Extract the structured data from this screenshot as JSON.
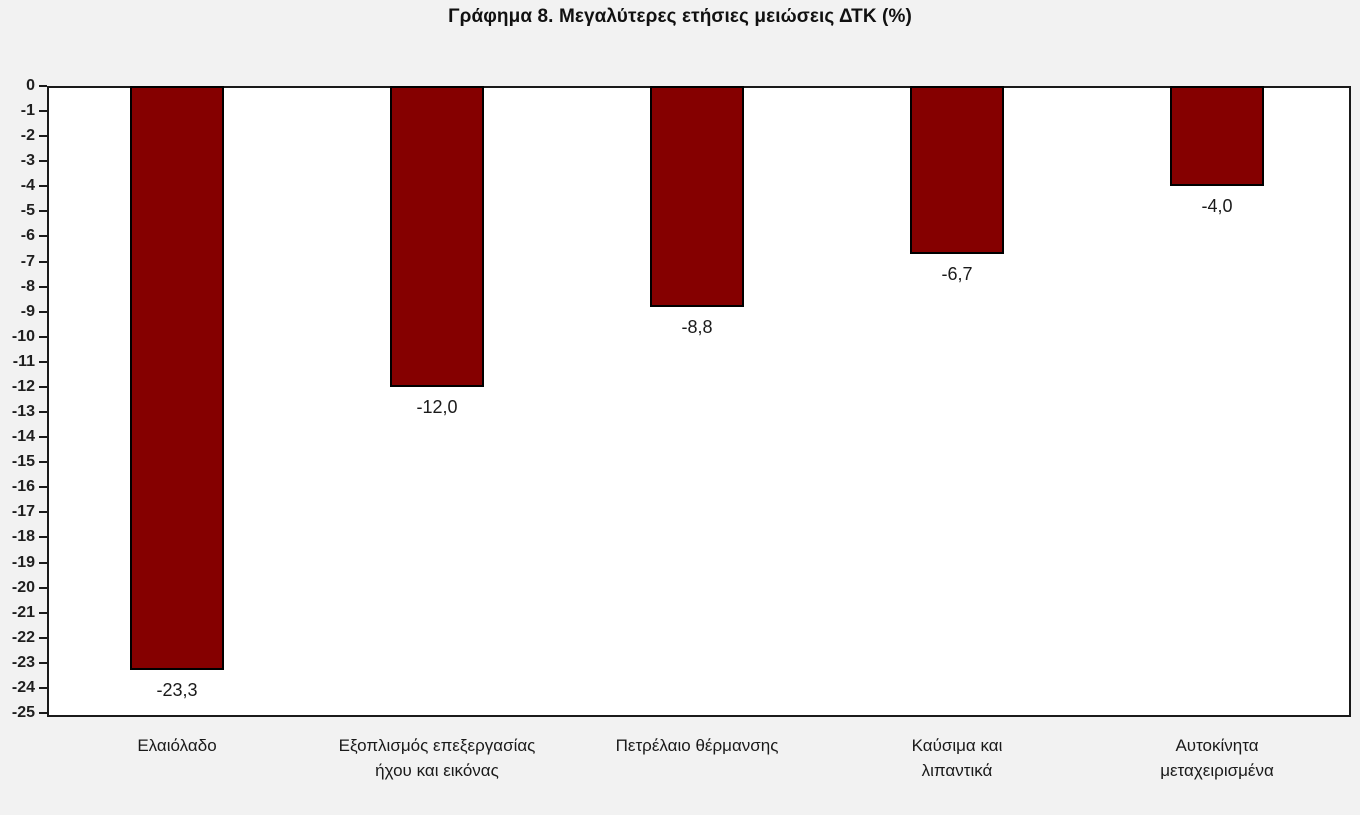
{
  "page": {
    "background_color": "#f2f2f2",
    "plot_background_color": "#ffffff",
    "axis_color": "#1a1a1a",
    "text_color": "#1a1a1a"
  },
  "title": "Γράφημα 8. Μεγαλύτερες ετήσιες μειώσεις ΔΤΚ (%)",
  "chart_data": {
    "type": "bar",
    "title": "Γράφημα 8. Μεγαλύτερες ετήσιες μειώσεις ΔΤΚ (%)",
    "orientation": "vertical",
    "categories": [
      "Ελαιόλαδο",
      "Εξοπλισμός επεξεργασίας ήχου και εικόνας",
      "Πετρέλαιο θέρμανσης",
      "Καύσιμα και λιπαντικά",
      "Αυτοκίνητα μεταχειρισμένα"
    ],
    "category_label_lines": [
      [
        "Ελαιόλαδο"
      ],
      [
        "Εξοπλισμός επεξεργασίας",
        "ήχου και εικόνας"
      ],
      [
        "Πετρέλαιο θέρμανσης"
      ],
      [
        "Καύσιμα και",
        "λιπαντικά"
      ],
      [
        "Αυτοκίνητα",
        "μεταχειρισμένα"
      ]
    ],
    "values": [
      -23.3,
      -12.0,
      -8.8,
      -6.7,
      -4.0
    ],
    "value_labels": [
      "-23,3",
      "-12,0",
      "-8,8",
      "-6,7",
      "-4,0"
    ],
    "xlabel": "",
    "ylabel": "",
    "ylim": [
      0,
      -25
    ],
    "y_tick_step": 1,
    "y_tick_labels": [
      "0",
      "-1",
      "-2",
      "-3",
      "-4",
      "-5",
      "-6",
      "-7",
      "-8",
      "-9",
      "-10",
      "-11",
      "-12",
      "-13",
      "-14",
      "-15",
      "-16",
      "-17",
      "-18",
      "-19",
      "-20",
      "-21",
      "-22",
      "-23",
      "-24",
      "-25"
    ],
    "grid": false,
    "legend_position": "none",
    "bar_color": "#850000",
    "bar_border_color": "#000000"
  }
}
